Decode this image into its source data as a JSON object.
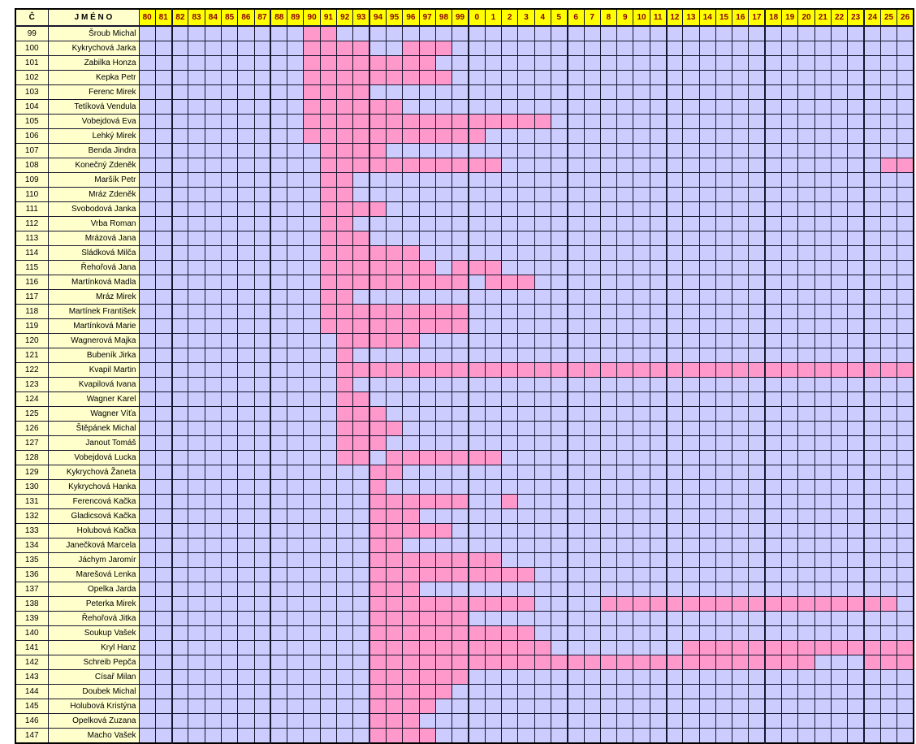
{
  "table": {
    "corner": {
      "number_header": "Č",
      "name_header": "J M É N O"
    },
    "year_columns": [
      "80",
      "81",
      "82",
      "83",
      "84",
      "85",
      "86",
      "87",
      "88",
      "89",
      "90",
      "91",
      "92",
      "93",
      "94",
      "95",
      "96",
      "97",
      "98",
      "99",
      "0",
      "1",
      "2",
      "3",
      "4",
      "5",
      "6",
      "7",
      "8",
      "9",
      "10",
      "11",
      "12",
      "13",
      "14",
      "15",
      "16",
      "17",
      "18",
      "19",
      "20",
      "21",
      "22",
      "23",
      "24",
      "25",
      "26"
    ],
    "colors": {
      "year_header_bg": "#FFFF00",
      "year_header_text": "#8B0000",
      "label_bg": "#FFFFCC",
      "empty_cell_bg": "#CCCCFF",
      "member_cell_bg": "#FF99CC",
      "grid_line": "#16162e"
    },
    "rows": [
      {
        "num": "99",
        "name": "Šroub Michal",
        "spans": [
          [
            10,
            11
          ]
        ]
      },
      {
        "num": "100",
        "name": "Kykrychová Jarka",
        "spans": [
          [
            10,
            13
          ],
          [
            16,
            18
          ]
        ]
      },
      {
        "num": "101",
        "name": "Zabilka Honza",
        "spans": [
          [
            10,
            17
          ]
        ]
      },
      {
        "num": "102",
        "name": "Kepka Petr",
        "spans": [
          [
            10,
            18
          ]
        ]
      },
      {
        "num": "103",
        "name": "Ferenc Mirek",
        "spans": [
          [
            10,
            13
          ]
        ]
      },
      {
        "num": "104",
        "name": "Tetíková Vendula",
        "spans": [
          [
            10,
            15
          ]
        ]
      },
      {
        "num": "105",
        "name": "Vobejdová Eva",
        "spans": [
          [
            10,
            24
          ]
        ]
      },
      {
        "num": "106",
        "name": "Lehký Mirek",
        "spans": [
          [
            10,
            20
          ]
        ]
      },
      {
        "num": "107",
        "name": "Benda Jindra",
        "spans": [
          [
            11,
            14
          ]
        ]
      },
      {
        "num": "108",
        "name": "Konečný Zdeněk",
        "spans": [
          [
            11,
            21
          ],
          [
            45,
            46
          ]
        ]
      },
      {
        "num": "109",
        "name": "Maršík Petr",
        "spans": [
          [
            11,
            12
          ]
        ]
      },
      {
        "num": "110",
        "name": "Mráz Zdeněk",
        "spans": [
          [
            11,
            12
          ]
        ]
      },
      {
        "num": "111",
        "name": "Svobodová Janka",
        "spans": [
          [
            11,
            14
          ]
        ]
      },
      {
        "num": "112",
        "name": "Vrba Roman",
        "spans": [
          [
            11,
            12
          ]
        ]
      },
      {
        "num": "113",
        "name": "Mrázová Jana",
        "spans": [
          [
            11,
            13
          ]
        ]
      },
      {
        "num": "114",
        "name": "Sládková Milča",
        "spans": [
          [
            11,
            16
          ]
        ]
      },
      {
        "num": "115",
        "name": "Řehořová Jana",
        "spans": [
          [
            11,
            17
          ],
          [
            19,
            21
          ]
        ]
      },
      {
        "num": "116",
        "name": "Martínková Madla",
        "spans": [
          [
            11,
            19
          ],
          [
            21,
            23
          ]
        ]
      },
      {
        "num": "117",
        "name": "Mráz Mirek",
        "spans": [
          [
            11,
            12
          ]
        ]
      },
      {
        "num": "118",
        "name": "Martínek František",
        "spans": [
          [
            11,
            19
          ]
        ]
      },
      {
        "num": "119",
        "name": "Martínková Marie",
        "spans": [
          [
            11,
            19
          ]
        ]
      },
      {
        "num": "120",
        "name": "Wagnerová Majka",
        "spans": [
          [
            12,
            16
          ]
        ]
      },
      {
        "num": "121",
        "name": "Bubeník Jirka",
        "spans": [
          [
            12,
            12
          ]
        ]
      },
      {
        "num": "122",
        "name": "Kvapil Martin",
        "spans": [
          [
            12,
            46
          ]
        ]
      },
      {
        "num": "123",
        "name": "Kvapilová Ivana",
        "spans": [
          [
            12,
            12
          ]
        ]
      },
      {
        "num": "124",
        "name": "Wagner Karel",
        "spans": [
          [
            12,
            13
          ]
        ]
      },
      {
        "num": "125",
        "name": "Wagner Víťa",
        "spans": [
          [
            12,
            14
          ]
        ]
      },
      {
        "num": "126",
        "name": "Štěpánek Michal",
        "spans": [
          [
            12,
            15
          ]
        ]
      },
      {
        "num": "127",
        "name": "Janout Tomáš",
        "spans": [
          [
            12,
            14
          ]
        ]
      },
      {
        "num": "128",
        "name": "Vobejdová Lucka",
        "spans": [
          [
            12,
            13
          ],
          [
            15,
            21
          ]
        ]
      },
      {
        "num": "129",
        "name": "Kykrychová Žaneta",
        "spans": [
          [
            14,
            15
          ]
        ]
      },
      {
        "num": "130",
        "name": "Kykrychová Hanka",
        "spans": [
          [
            14,
            14
          ]
        ]
      },
      {
        "num": "131",
        "name": "Ferencová Kačka",
        "spans": [
          [
            14,
            19
          ],
          [
            22,
            22
          ]
        ]
      },
      {
        "num": "132",
        "name": "Gladicsová Kačka",
        "spans": [
          [
            14,
            16
          ]
        ]
      },
      {
        "num": "133",
        "name": "Holubová Kačka",
        "spans": [
          [
            14,
            18
          ]
        ]
      },
      {
        "num": "134",
        "name": "Janečková Marcela",
        "spans": [
          [
            14,
            15
          ]
        ]
      },
      {
        "num": "135",
        "name": "Jáchym Jaromír",
        "spans": [
          [
            14,
            21
          ]
        ]
      },
      {
        "num": "136",
        "name": "Marešová Lenka",
        "spans": [
          [
            14,
            23
          ]
        ]
      },
      {
        "num": "137",
        "name": "Opelka Jarda",
        "spans": [
          [
            14,
            16
          ]
        ]
      },
      {
        "num": "138",
        "name": "Peterka Mirek",
        "spans": [
          [
            14,
            23
          ],
          [
            28,
            45
          ]
        ]
      },
      {
        "num": "139",
        "name": "Řehořová Jitka",
        "spans": [
          [
            14,
            19
          ]
        ]
      },
      {
        "num": "140",
        "name": "Soukup Vašek",
        "spans": [
          [
            14,
            23
          ]
        ]
      },
      {
        "num": "141",
        "name": "Kryl Hanz",
        "spans": [
          [
            14,
            24
          ],
          [
            33,
            46
          ]
        ]
      },
      {
        "num": "142",
        "name": "Schreib Pepča",
        "spans": [
          [
            14,
            40
          ],
          [
            44,
            46
          ]
        ]
      },
      {
        "num": "143",
        "name": "Císař Milan",
        "spans": [
          [
            14,
            19
          ]
        ]
      },
      {
        "num": "144",
        "name": "Doubek Michal",
        "spans": [
          [
            14,
            18
          ]
        ]
      },
      {
        "num": "145",
        "name": "Holubová Kristýna",
        "spans": [
          [
            14,
            17
          ]
        ]
      },
      {
        "num": "146",
        "name": "Opelková Zuzana",
        "spans": [
          [
            14,
            16
          ]
        ]
      },
      {
        "num": "147",
        "name": "Macho Vašek",
        "spans": [
          [
            14,
            17
          ]
        ]
      }
    ]
  }
}
